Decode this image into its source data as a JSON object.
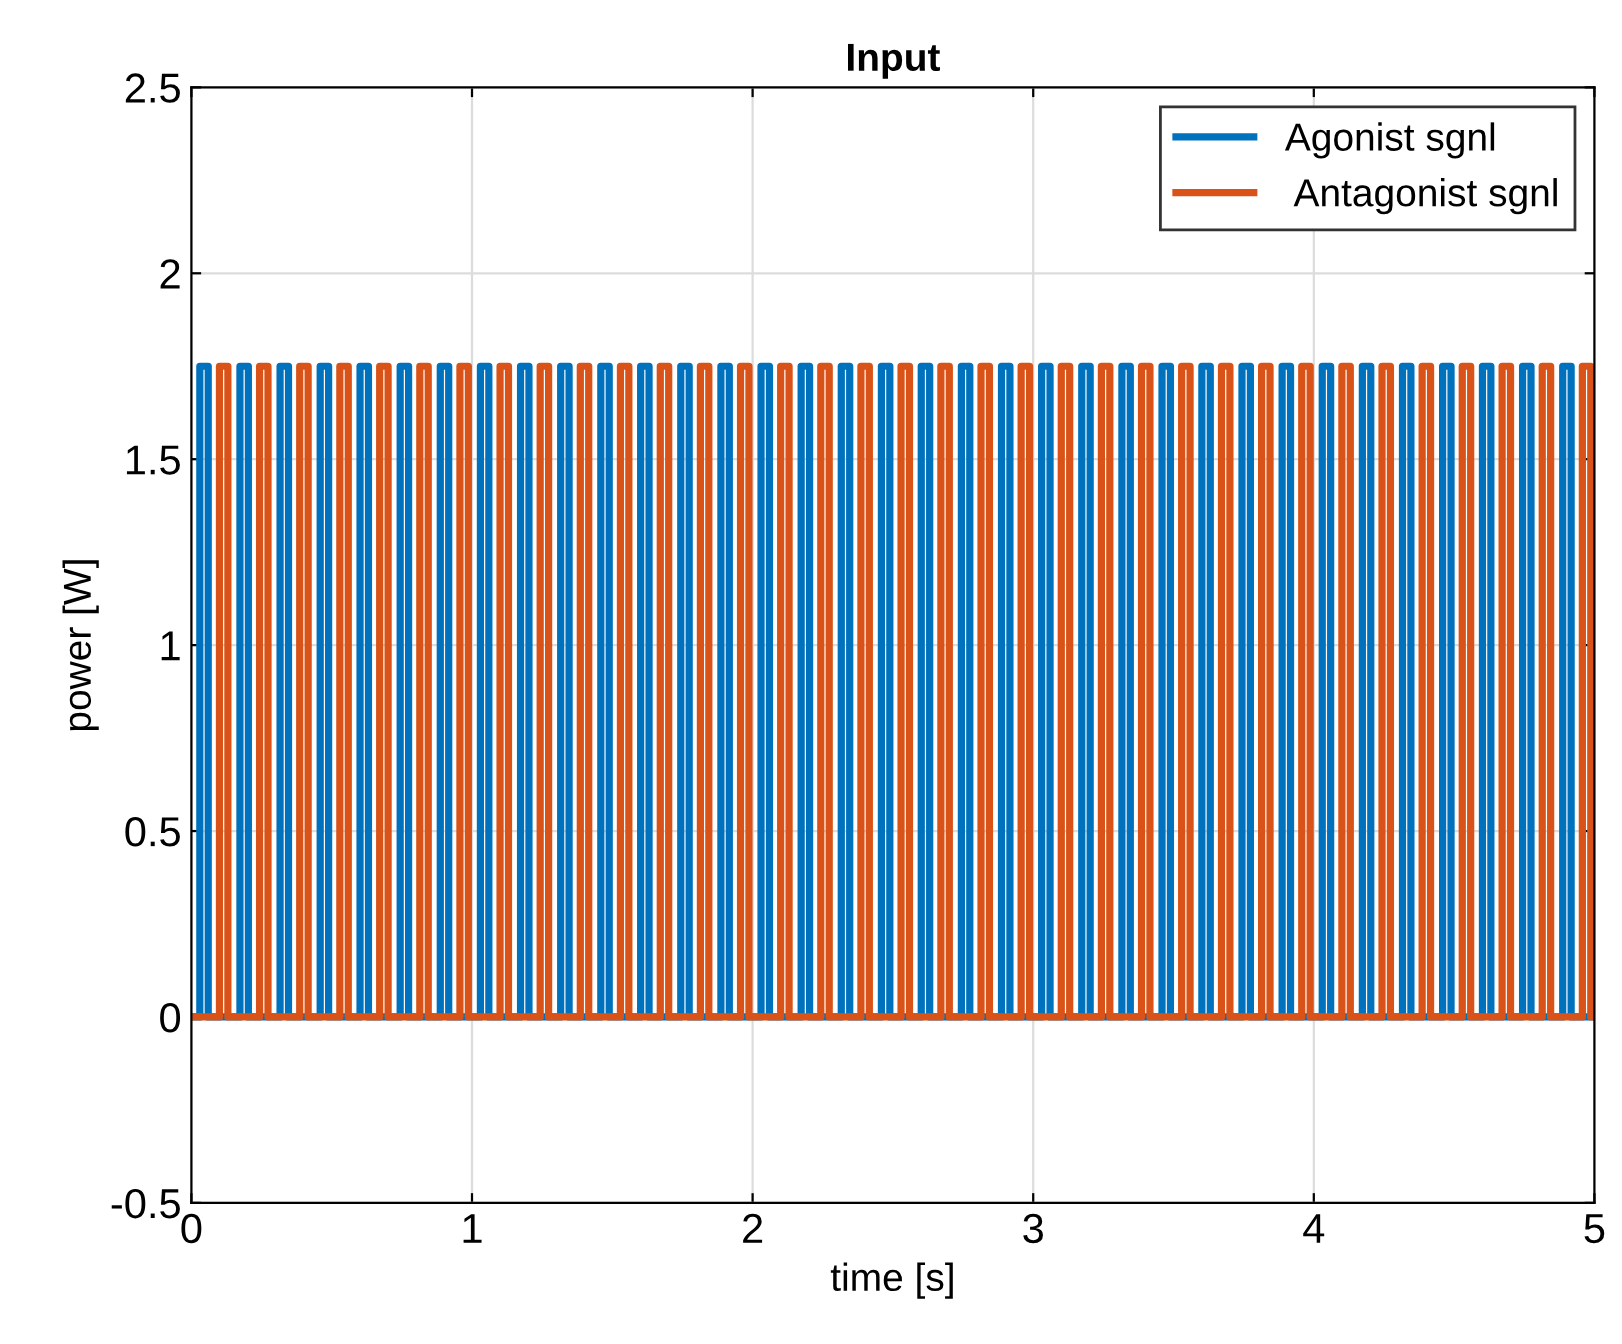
{
  "chart_data": {
    "type": "step",
    "title": "Input",
    "xlabel": "time [s]",
    "ylabel": "power [W]",
    "xlim": [
      0,
      5
    ],
    "ylim": [
      -0.5,
      2.5
    ],
    "xticks": [
      0,
      1,
      2,
      3,
      4,
      5
    ],
    "yticks": [
      -0.5,
      0,
      0.5,
      1,
      1.5,
      2,
      2.5
    ],
    "grid": true,
    "legend": "top right",
    "line_style": "solid",
    "series": [
      {
        "name": "Agonist sgnl",
        "color": "#0072bd",
        "x": [
          0,
          0.03,
          0.06,
          0.173,
          0.203,
          0.316,
          0.346,
          0.459,
          0.489,
          0.601,
          0.631,
          0.744,
          0.774,
          0.887,
          0.917,
          1.03,
          1.06,
          1.173,
          1.203,
          1.316,
          1.346,
          1.459,
          1.489,
          1.601,
          1.631,
          1.744,
          1.774,
          1.887,
          1.917,
          2.03,
          2.06,
          2.173,
          2.203,
          2.316,
          2.346,
          2.459,
          2.489,
          2.601,
          2.631,
          2.744,
          2.774,
          2.887,
          2.917,
          3.03,
          3.06,
          3.173,
          3.203,
          3.316,
          3.346,
          3.459,
          3.489,
          3.601,
          3.631,
          3.744,
          3.774,
          3.887,
          3.917,
          4.03,
          4.06,
          4.173,
          4.203,
          4.316,
          4.346,
          4.459,
          4.489,
          4.601,
          4.631,
          4.744,
          4.774,
          4.887,
          4.917,
          5
        ],
        "values": [
          0,
          1.75,
          0,
          1.75,
          0,
          1.75,
          0,
          1.75,
          0,
          1.75,
          0,
          1.75,
          0,
          1.75,
          0,
          1.75,
          0,
          1.75,
          0,
          1.75,
          0,
          1.75,
          0,
          1.75,
          0,
          1.75,
          0,
          1.75,
          0,
          1.75,
          0,
          1.75,
          0,
          1.75,
          0,
          1.75,
          0,
          1.75,
          0,
          1.75,
          0,
          1.75,
          0,
          1.75,
          0,
          1.75,
          0,
          1.75,
          0,
          1.75,
          0,
          1.75,
          0,
          1.75,
          0,
          1.75,
          0,
          1.75,
          0,
          1.75,
          0,
          1.75,
          0,
          1.75,
          0,
          1.75,
          0,
          1.75,
          0,
          1.75,
          0,
          0
        ]
      },
      {
        "name": " Antagonist sgnl",
        "color": "#d95319",
        "x": [
          0,
          0.1,
          0.13,
          0.243,
          0.273,
          0.386,
          0.416,
          0.529,
          0.559,
          0.671,
          0.701,
          0.814,
          0.844,
          0.957,
          0.987,
          1.1,
          1.13,
          1.243,
          1.273,
          1.386,
          1.416,
          1.529,
          1.559,
          1.671,
          1.701,
          1.814,
          1.844,
          1.957,
          1.987,
          2.1,
          2.13,
          2.243,
          2.273,
          2.386,
          2.416,
          2.529,
          2.559,
          2.671,
          2.701,
          2.814,
          2.844,
          2.957,
          2.987,
          3.1,
          3.13,
          3.243,
          3.273,
          3.386,
          3.416,
          3.529,
          3.559,
          3.671,
          3.701,
          3.814,
          3.844,
          3.957,
          3.987,
          4.1,
          4.13,
          4.243,
          4.273,
          4.386,
          4.416,
          4.529,
          4.559,
          4.671,
          4.701,
          4.814,
          4.844,
          4.957,
          4.987,
          5
        ],
        "values": [
          0,
          1.75,
          0,
          1.75,
          0,
          1.75,
          0,
          1.75,
          0,
          1.75,
          0,
          1.75,
          0,
          1.75,
          0,
          1.75,
          0,
          1.75,
          0,
          1.75,
          0,
          1.75,
          0,
          1.75,
          0,
          1.75,
          0,
          1.75,
          0,
          1.75,
          0,
          1.75,
          0,
          1.75,
          0,
          1.75,
          0,
          1.75,
          0,
          1.75,
          0,
          1.75,
          0,
          1.75,
          0,
          1.75,
          0,
          1.75,
          0,
          1.75,
          0,
          1.75,
          0,
          1.75,
          0,
          1.75,
          0,
          1.75,
          0,
          1.75,
          0,
          1.75,
          0,
          1.75,
          0,
          1.75,
          0,
          1.75,
          0,
          1.75,
          0,
          0
        ]
      }
    ]
  }
}
